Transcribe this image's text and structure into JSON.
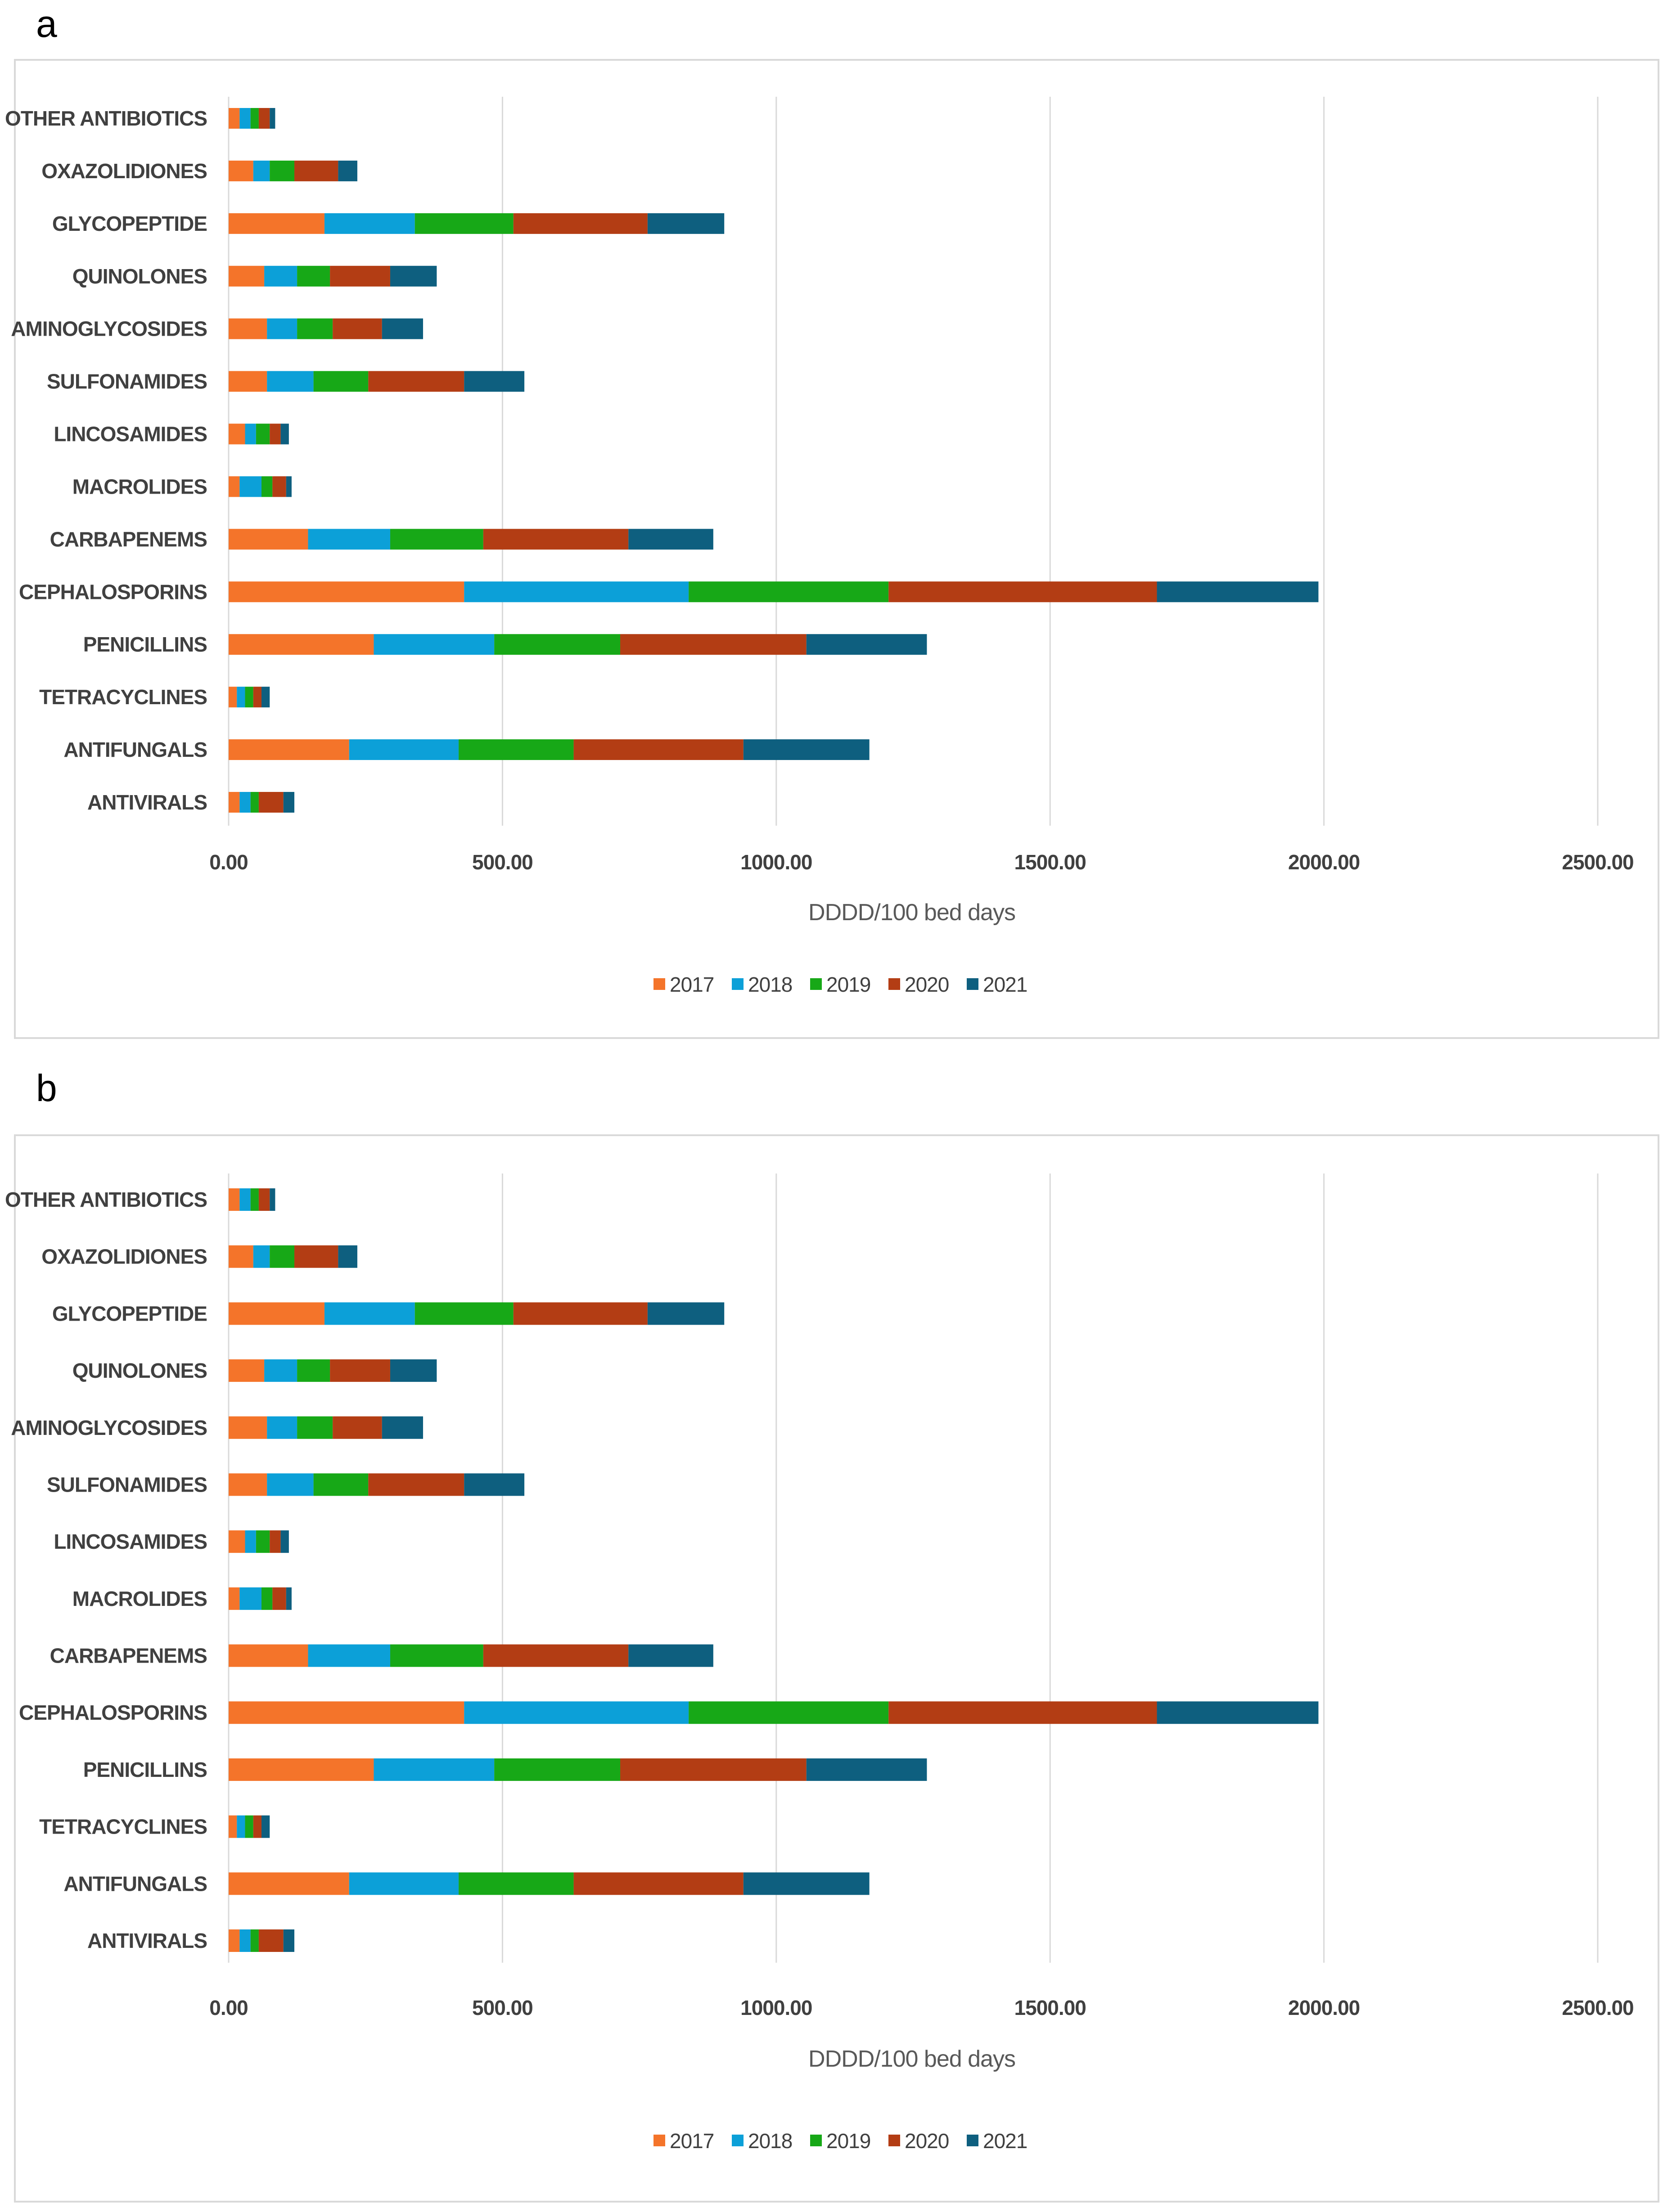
{
  "chart_data": [
    {
      "panel": "a",
      "type": "bar",
      "orientation": "horizontal",
      "stacked": true,
      "categories": [
        "OTHER ANTIBIOTICS",
        "OXAZOLIDIONES",
        "GLYCOPEPTIDE",
        "QUINOLONES",
        "AMINOGLYCOSIDES",
        "SULFONAMIDES",
        "LINCOSAMIDES",
        "MACROLIDES",
        "CARBAPENEMS",
        "CEPHALOSPORINS",
        "PENICILLINS",
        "TETRACYCLINES",
        "ANTIFUNGALS",
        "ANTIVIRALS"
      ],
      "series": [
        {
          "name": "2017",
          "color": "#f4742a",
          "values": [
            20,
            45,
            175,
            65,
            70,
            70,
            30,
            20,
            145,
            430,
            265,
            15,
            220,
            20
          ]
        },
        {
          "name": "2018",
          "color": "#0ca0d8",
          "values": [
            20,
            30,
            165,
            60,
            55,
            85,
            20,
            40,
            150,
            410,
            220,
            15,
            200,
            20
          ]
        },
        {
          "name": "2019",
          "color": "#17a817",
          "values": [
            15,
            45,
            180,
            60,
            65,
            100,
            25,
            20,
            170,
            365,
            230,
            15,
            210,
            15
          ]
        },
        {
          "name": "2020",
          "color": "#b33d14",
          "values": [
            20,
            80,
            245,
            110,
            90,
            175,
            20,
            25,
            265,
            490,
            340,
            15,
            310,
            45
          ]
        },
        {
          "name": "2021",
          "color": "#0e5f7f",
          "values": [
            10,
            35,
            140,
            85,
            75,
            110,
            15,
            10,
            155,
            295,
            220,
            15,
            230,
            20
          ]
        }
      ],
      "xlim": [
        0,
        2500
      ],
      "xticks": [
        "0.00",
        "500.00",
        "1000.00",
        "1500.00",
        "2000.00",
        "2500.00"
      ],
      "xlabel": "DDDD/100 bed days",
      "ylabel": "",
      "title": "",
      "grid": "vertical",
      "legend_position": "bottom"
    },
    {
      "panel": "b",
      "type": "bar",
      "orientation": "horizontal",
      "stacked": true,
      "categories": [
        "OTHER ANTIBIOTICS",
        "OXAZOLIDIONES",
        "GLYCOPEPTIDE",
        "QUINOLONES",
        "AMINOGLYCOSIDES",
        "SULFONAMIDES",
        "LINCOSAMIDES",
        "MACROLIDES",
        "CARBAPENEMS",
        "CEPHALOSPORINS",
        "PENICILLINS",
        "TETRACYCLINES",
        "ANTIFUNGALS",
        "ANTIVIRALS"
      ],
      "series": [
        {
          "name": "2017",
          "color": "#f4742a",
          "values": [
            20,
            45,
            175,
            65,
            70,
            70,
            30,
            20,
            145,
            430,
            265,
            15,
            220,
            20
          ]
        },
        {
          "name": "2018",
          "color": "#0ca0d8",
          "values": [
            20,
            30,
            165,
            60,
            55,
            85,
            20,
            40,
            150,
            410,
            220,
            15,
            200,
            20
          ]
        },
        {
          "name": "2019",
          "color": "#17a817",
          "values": [
            15,
            45,
            180,
            60,
            65,
            100,
            25,
            20,
            170,
            365,
            230,
            15,
            210,
            15
          ]
        },
        {
          "name": "2020",
          "color": "#b33d14",
          "values": [
            20,
            80,
            245,
            110,
            90,
            175,
            20,
            25,
            265,
            490,
            340,
            15,
            310,
            45
          ]
        },
        {
          "name": "2021",
          "color": "#0e5f7f",
          "values": [
            10,
            35,
            140,
            85,
            75,
            110,
            15,
            10,
            155,
            295,
            220,
            15,
            230,
            20
          ]
        }
      ],
      "xlim": [
        0,
        2500
      ],
      "xticks": [
        "0.00",
        "500.00",
        "1000.00",
        "1500.00",
        "2000.00",
        "2500.00"
      ],
      "xlabel": "DDDD/100 bed days",
      "ylabel": "",
      "title": "",
      "grid": "vertical",
      "legend_position": "bottom"
    }
  ]
}
